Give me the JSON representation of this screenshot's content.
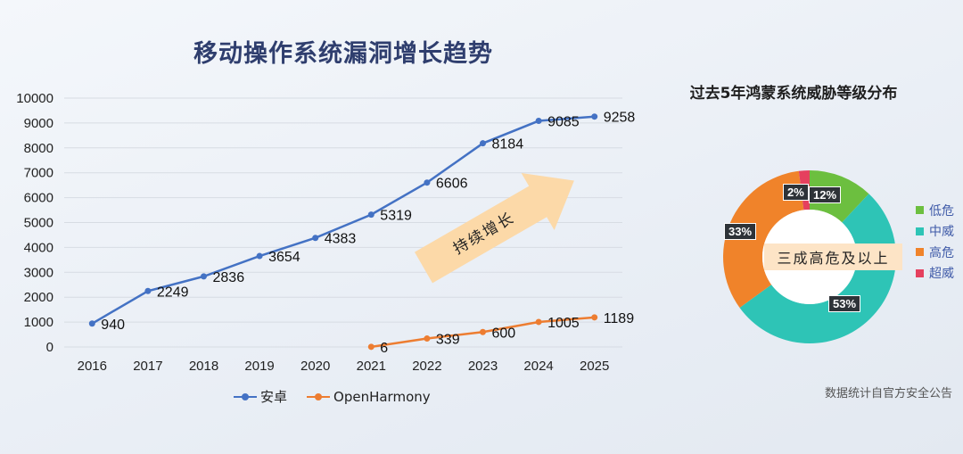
{
  "line_chart_title": "移动操作系统漏洞增长趋势",
  "arrow_text": "持续增长",
  "pie_chart_title": "过去5年鸿蒙系统威胁等级分布",
  "pie_center_text": "三成高危及以上",
  "source_note": "数据统计自官方安全公告",
  "colors": {
    "android": "#4472c4",
    "openharmony": "#ed7d31",
    "low": "#6cbf3f",
    "mid": "#2ec4b6",
    "high": "#f0832a",
    "super": "#e5405e"
  },
  "chart_data": [
    {
      "type": "line",
      "title": "移动操作系统漏洞增长趋势",
      "x": [
        "2016",
        "2017",
        "2018",
        "2019",
        "2020",
        "2021",
        "2022",
        "2023",
        "2024",
        "2025"
      ],
      "ylim": [
        0,
        10000
      ],
      "yticks": [
        0,
        1000,
        2000,
        3000,
        4000,
        5000,
        6000,
        7000,
        8000,
        9000,
        10000
      ],
      "grid": true,
      "legend_position": "bottom",
      "series": [
        {
          "name": "安卓",
          "values": [
            940,
            2249,
            2836,
            3654,
            4383,
            5319,
            6606,
            8184,
            9085,
            9258
          ]
        },
        {
          "name": "OpenHarmony",
          "values": [
            null,
            null,
            null,
            null,
            null,
            6,
            339,
            600,
            1005,
            1189
          ]
        }
      ]
    },
    {
      "type": "pie",
      "title": "过去5年鸿蒙系统威胁等级分布",
      "categories": [
        "低危",
        "中威",
        "高危",
        "超威"
      ],
      "values": [
        12,
        53,
        33,
        2
      ],
      "labels": [
        "12%",
        "53%",
        "33%",
        "2%"
      ],
      "legend_position": "right"
    }
  ]
}
